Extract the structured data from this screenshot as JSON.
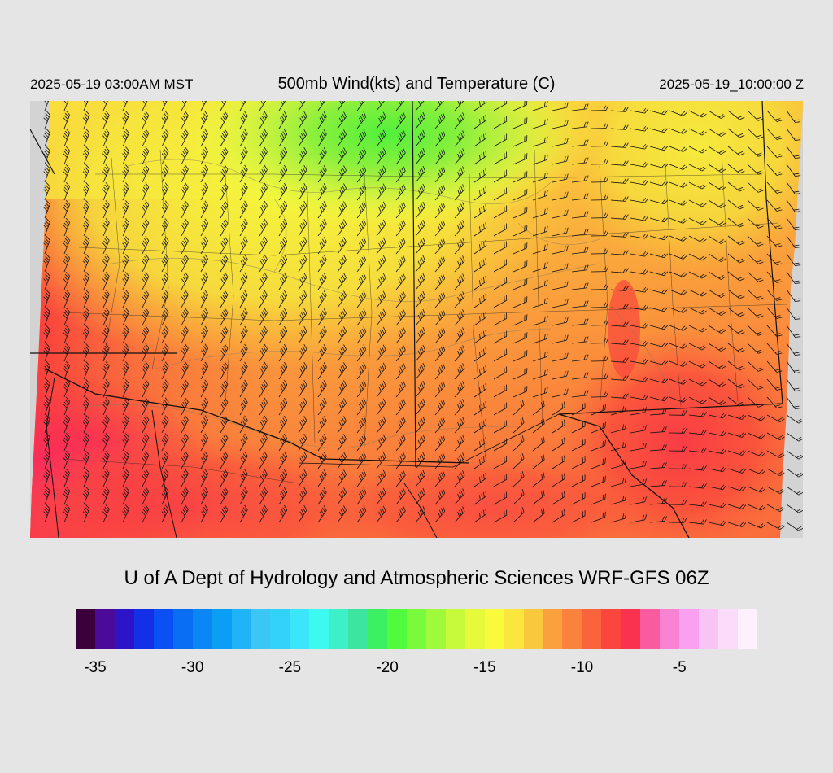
{
  "header": {
    "title": "500mb Wind(kts) and Temperature (C)",
    "local_time": "2025-05-19 03:00AM MST",
    "valid_time": "2025-05-19_10:00:00 Z"
  },
  "footer": {
    "credit": "U of A Dept of Hydrology and Atmospheric Sciences WRF-GFS 06Z"
  },
  "colorbar": {
    "min": -36,
    "max": -1,
    "step": 1,
    "tick_labels": [
      "-35",
      "-30",
      "-25",
      "-20",
      "-15",
      "-10",
      "-5"
    ],
    "colors": [
      "#3b003b",
      "#4b0a9a",
      "#2d14c8",
      "#1430e6",
      "#0a50f5",
      "#0a6ef5",
      "#0a87f5",
      "#0a9ff5",
      "#1eb4f5",
      "#3cc6f5",
      "#32d2fa",
      "#3ce6fa",
      "#3cfaf0",
      "#3cf0c8",
      "#3ce6a0",
      "#3cf064",
      "#50fa3c",
      "#7afa3c",
      "#a0fa3c",
      "#c8fa3c",
      "#e6fa3c",
      "#fafa3c",
      "#fae63c",
      "#fac83c",
      "#faa03c",
      "#fa823c",
      "#fa643c",
      "#fa463c",
      "#fa3250",
      "#fa5aa0",
      "#fa82d2",
      "#faa0f0",
      "#fac3f5",
      "#fadcfa",
      "#fff0fd"
    ]
  },
  "map": {
    "field": "500mb temperature (C) with wind barbs (kts)",
    "temperature_range_shown": [
      -20,
      -5
    ],
    "coldest_region": "northern center (~-20 C)",
    "warmest_region": "southwest (~-7 C)"
  }
}
